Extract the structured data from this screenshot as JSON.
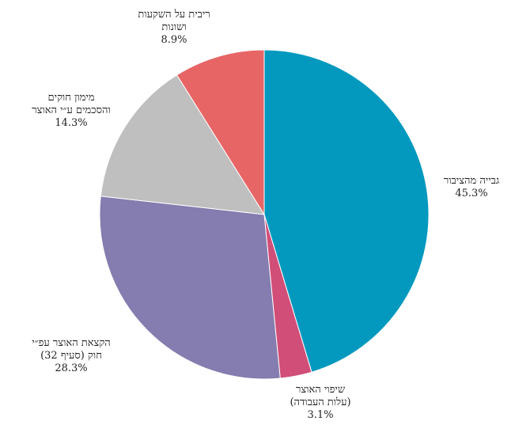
{
  "chart_data": {
    "type": "pie",
    "start_angle_deg": 90,
    "direction": "clockwise",
    "slices": [
      {
        "label_lines": [
          "גבייה מהציבור"
        ],
        "value": 45.3,
        "value_label": "45.3%",
        "color": "#0399bf"
      },
      {
        "label_lines": [
          "שיפוי האוצר",
          "(עלות העבודה)"
        ],
        "value": 3.1,
        "value_label": "3.1%",
        "color": "#d04e77"
      },
      {
        "label_lines": [
          "הקצאת האוצר עפ״י",
          "חוק (סעיף 32)"
        ],
        "value": 28.3,
        "value_label": "28.3%",
        "color": "#857caf"
      },
      {
        "label_lines": [
          "מימון חוקים",
          "והסכמים ע״י האוצר"
        ],
        "value": 14.3,
        "value_label": "14.3%",
        "color": "#bfbfbf"
      },
      {
        "label_lines": [
          "ריבית על השקעות",
          "ושונות"
        ],
        "value": 8.9,
        "value_label": "8.9%",
        "color": "#e76565"
      }
    ]
  }
}
